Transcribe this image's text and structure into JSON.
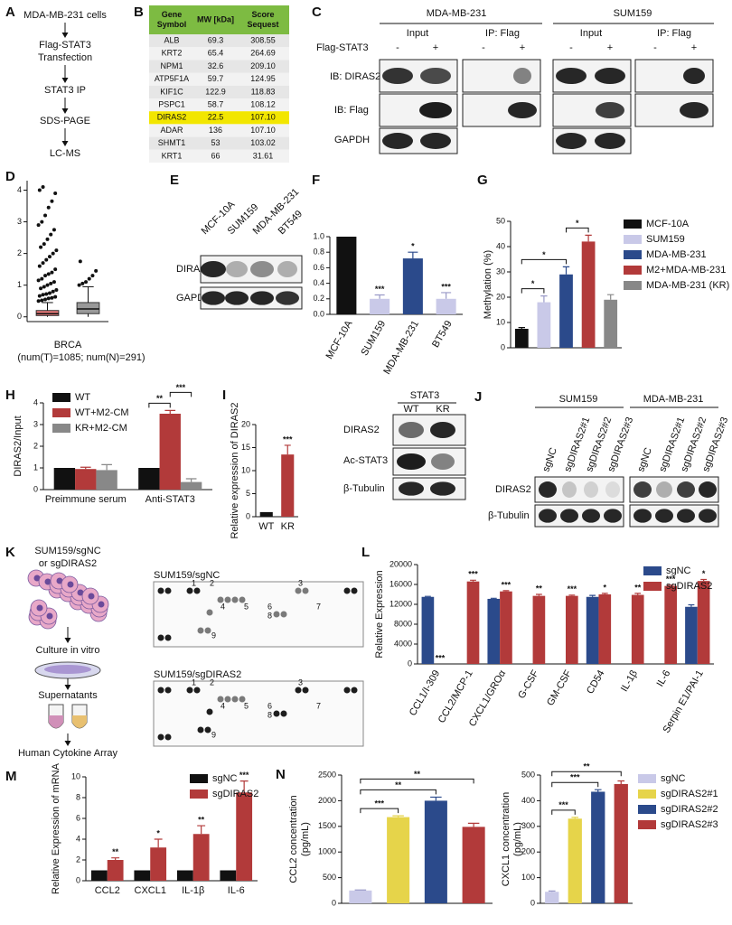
{
  "panel_a": {
    "letter": "A",
    "steps": [
      [
        "MDA-MB-231 cells"
      ],
      [
        "Flag-STAT3",
        "Transfection"
      ],
      [
        "STAT3 IP"
      ],
      [
        "SDS-PAGE"
      ],
      [
        "LC-MS"
      ]
    ]
  },
  "panel_b": {
    "letter": "B",
    "headers": [
      [
        "Gene",
        "Symbol"
      ],
      [
        "MW [kDa]"
      ],
      [
        "Score",
        "Sequest"
      ]
    ],
    "rows": [
      [
        "ALB",
        "69.3",
        "308.55"
      ],
      [
        "KRT2",
        "65.4",
        "264.69"
      ],
      [
        "NPM1",
        "32.6",
        "209.10"
      ],
      [
        "ATP5F1A",
        "59.7",
        "124.95"
      ],
      [
        "KIF1C",
        "122.9",
        "118.83"
      ],
      [
        "PSPC1",
        "58.7",
        "108.12"
      ],
      [
        "DIRAS2",
        "22.5",
        "107.10"
      ],
      [
        "ADAR",
        "136",
        "107.10"
      ],
      [
        "SHMT1",
        "53",
        "103.02"
      ],
      [
        "KRT1",
        "66",
        "31.61"
      ]
    ],
    "highlight_row": "DIRAS2",
    "header_color": "#7dbb42",
    "highlight_color": "#f2e600"
  },
  "panel_c": {
    "letter": "C",
    "cell_lines": [
      "MDA-MB-231",
      "SUM159"
    ],
    "groups": [
      "Input",
      "IP: Flag"
    ],
    "treatment": "Flag-STAT3",
    "signs": [
      "-",
      "+"
    ],
    "rows": [
      "IB: DIRAS2",
      "IB: Flag",
      "GAPDH"
    ]
  },
  "panel_e": {
    "letter": "E",
    "lanes": [
      "MCF-10A",
      "SUM159",
      "MDA-MB-231",
      "BT549"
    ],
    "rows": [
      "DIRAS2",
      "GAPDH"
    ]
  },
  "panel_i_blot": {
    "group": "STAT3",
    "lanes": [
      "WT",
      "KR"
    ],
    "rows": [
      "DIRAS2",
      "Ac-STAT3",
      "β-Tubulin"
    ]
  },
  "panel_j": {
    "letter": "J",
    "cell_lines": [
      "SUM159",
      "MDA-MB-231"
    ],
    "lanes": [
      "sgNC",
      "sgDIRAS2#1",
      "sgDIRAS2#2",
      "sgDIRAS2#3"
    ],
    "rows": [
      "DIRAS2",
      "β-Tubulin"
    ]
  },
  "panel_k": {
    "letter": "K",
    "steps": [
      [
        "SUM159/sgNC",
        "or sgDIRAS2"
      ],
      [
        "Culture in vitro"
      ],
      [
        "Supernatants"
      ],
      [
        "Human Cytokine Array"
      ]
    ]
  },
  "panel_l_arrays": {
    "titles": [
      "SUM159/sgNC",
      "SUM159/sgDIRAS2"
    ],
    "labels": [
      "1",
      "2",
      "3",
      "4",
      "5",
      "6",
      "7",
      "8",
      "9"
    ]
  },
  "chart_data": [
    {
      "type": "box",
      "panel": "D",
      "xlabel": "BRCA",
      "note": "(num(T)=1085; num(N)=291)",
      "ylim": [
        -0.15,
        4.3
      ],
      "yticks": [
        0,
        1,
        2,
        3,
        4
      ],
      "boxes": [
        {
          "color": "#e06060",
          "q1": 0.04,
          "median": 0.1,
          "q3": 0.2,
          "whisker_low": 0,
          "whisker_high": 0.45,
          "outliers": [
            0.5,
            0.52,
            0.55,
            0.58,
            0.6,
            0.63,
            0.66,
            0.7,
            0.72,
            0.75,
            0.8,
            0.85,
            0.9,
            0.95,
            1.0,
            1.05,
            1.1,
            1.15,
            1.2,
            1.3,
            1.35,
            1.4,
            1.5,
            1.6,
            1.7,
            1.8,
            1.9,
            2.0,
            2.1,
            2.2,
            2.3,
            2.45,
            2.6,
            2.75,
            2.9,
            3.0,
            3.2,
            3.45,
            3.65,
            3.9,
            4.0,
            4.1
          ]
        },
        {
          "color": "#888888",
          "q1": 0.1,
          "median": 0.25,
          "q3": 0.45,
          "whisker_low": 0,
          "whisker_high": 0.95,
          "outliers": [
            1.0,
            1.05,
            1.1,
            1.2,
            1.3,
            1.45,
            1.75
          ]
        }
      ]
    },
    {
      "type": "bar",
      "panel": "F",
      "categories": [
        "MCF-10A",
        "SUM159",
        "MDA-MB-231",
        "BT549"
      ],
      "values": [
        1.0,
        0.2,
        0.72,
        0.2
      ],
      "errors": [
        0,
        0.05,
        0.08,
        0.08
      ],
      "colors": [
        "#111111",
        "#c9c9e8",
        "#2b4a8b",
        "#c9c9e8"
      ],
      "stars": [
        null,
        "***",
        "*",
        "***"
      ],
      "ylim": [
        0,
        1.0
      ],
      "yticks": [
        {
          "value": 0,
          "label": "0.0"
        },
        0.2,
        0.4,
        0.6,
        0.8,
        {
          "value": 1.0,
          "label": "1.0"
        }
      ]
    },
    {
      "type": "bar",
      "panel": "G",
      "ylabel": "Methylation (%)",
      "categories": [
        "MCF-10A",
        "SUM159",
        "MDA-MB-231",
        "M2+MDA-MB-231",
        "MDA-MB-231 (KR)"
      ],
      "values": [
        7.5,
        18,
        29,
        42,
        19
      ],
      "errors": [
        0.5,
        2.5,
        3,
        2.5,
        2
      ],
      "colors": [
        "#111111",
        "#c9c9e8",
        "#2b4a8b",
        "#b23a3a",
        "#888888"
      ],
      "ylim": [
        0,
        50
      ],
      "yticks": [
        0,
        10,
        20,
        30,
        40,
        50
      ],
      "x_labels": false,
      "legend": "right",
      "brackets": [
        {
          "from": "MCF-10A",
          "to": "SUM159",
          "text": "*"
        },
        {
          "from": "MCF-10A",
          "to": "MDA-MB-231",
          "text": "*"
        },
        {
          "from": "MDA-MB-231",
          "to": "M2+MDA-MB-231",
          "text": "*"
        }
      ]
    },
    {
      "type": "grouped_bar",
      "panel": "H",
      "ylabel": "DIRAS2/Input",
      "categories": [
        "Preimmune serum",
        "Anti-STAT3"
      ],
      "series": [
        {
          "name": "WT",
          "color": "#111111",
          "values": [
            1,
            1
          ],
          "errors": [
            0,
            0
          ]
        },
        {
          "name": "WT+M2-CM",
          "color": "#b23a3a",
          "values": [
            0.95,
            3.5
          ],
          "errors": [
            0.08,
            0.15
          ]
        },
        {
          "name": "KR+M2-CM",
          "color": "#888888",
          "values": [
            0.9,
            0.35
          ],
          "errors": [
            0.25,
            0.15
          ]
        }
      ],
      "ylim": [
        0,
        4
      ],
      "yticks": [
        0,
        1,
        2,
        3,
        4
      ],
      "legend": "upper left",
      "brackets": [
        {
          "group": "Anti-STAT3",
          "from": "WT",
          "to": "WT+M2-CM",
          "text": "**"
        },
        {
          "group": "Anti-STAT3",
          "from": "WT+M2-CM",
          "to": "KR+M2-CM",
          "text": "***"
        }
      ]
    },
    {
      "type": "bar",
      "panel": "I",
      "ylabel": "Relative expression of DIRAS2",
      "categories": [
        "WT",
        "KR"
      ],
      "values": [
        1,
        13.5
      ],
      "errors": [
        0,
        2
      ],
      "colors": [
        "#111111",
        "#b23a3a"
      ],
      "stars": [
        null,
        "***"
      ],
      "ylim": [
        0,
        20
      ],
      "yticks": [
        0,
        5,
        10,
        15,
        20
      ]
    },
    {
      "type": "grouped_bar",
      "panel": "L",
      "ylabel": "Relative Expression",
      "categories": [
        "CCL1/I-309",
        "CCL2/MCP-1",
        "CXCL1/GROα",
        "G-CSF",
        "GM-CSF",
        "CD54",
        "IL-1β",
        "IL-6",
        "Serpin E1/PAI-1"
      ],
      "series": [
        {
          "name": "sgNC",
          "color": "#2b4a8b",
          "values": [
            13500,
            0,
            13100,
            0,
            0,
            13500,
            0,
            0,
            11500
          ],
          "errors": [
            100,
            0,
            120,
            0,
            0,
            300,
            0,
            0,
            400
          ]
        },
        {
          "name": "sgDIRAS2",
          "color": "#b23a3a",
          "values": [
            0,
            16600,
            14600,
            13700,
            13700,
            14000,
            13900,
            15700,
            16700
          ],
          "errors": [
            0,
            250,
            150,
            300,
            150,
            200,
            300,
            150,
            300
          ],
          "stars": [
            "***",
            "***",
            "***",
            "**",
            "***",
            "*",
            "**",
            "***",
            "*"
          ]
        }
      ],
      "ylim": [
        0,
        20000
      ],
      "yticks": [
        0,
        4000,
        8000,
        12000,
        16000,
        20000
      ],
      "legend": "upper right"
    },
    {
      "type": "grouped_bar",
      "panel": "M",
      "ylabel": "Relative Expression of  mRNA",
      "categories": [
        "CCL2",
        "CXCL1",
        "IL-1β",
        "IL-6"
      ],
      "series": [
        {
          "name": "sgNC",
          "color": "#111111",
          "values": [
            1,
            1,
            1,
            1
          ],
          "errors": [
            0,
            0,
            0,
            0
          ]
        },
        {
          "name": "sgDIRAS2",
          "color": "#b23a3a",
          "values": [
            2,
            3.2,
            4.5,
            8.5
          ],
          "errors": [
            0.2,
            0.8,
            0.8,
            1.1
          ],
          "stars": [
            "**",
            "*",
            "**",
            "***"
          ]
        }
      ],
      "ylim": [
        0,
        10
      ],
      "yticks": [
        0,
        2,
        4,
        6,
        8,
        10
      ],
      "legend": "upper right"
    },
    {
      "type": "bar",
      "panel": "N",
      "ylabel": [
        "CCL2 concentration",
        "(pg/mL)"
      ],
      "categories": [
        "sgNC",
        "sgDIRAS2#1",
        "sgDIRAS2#2",
        "sgDIRAS2#3"
      ],
      "values": [
        250,
        1680,
        2000,
        1490
      ],
      "errors": [
        10,
        25,
        70,
        70
      ],
      "colors": [
        "#c9c9e8",
        "#e6d44a",
        "#2b4a8b",
        "#b23a3a"
      ],
      "ylim": [
        0,
        2500
      ],
      "yticks": [
        0,
        500,
        1000,
        1500,
        2000,
        2500
      ],
      "x_labels": false,
      "brackets": [
        {
          "from": "sgNC",
          "to": "sgDIRAS2#1",
          "text": "***"
        },
        {
          "from": "sgNC",
          "to": "sgDIRAS2#2",
          "text": "**"
        },
        {
          "from": "sgNC",
          "to": "sgDIRAS2#3",
          "text": "**"
        }
      ]
    },
    {
      "type": "bar",
      "ylabel": [
        "CXCL1 concentration",
        "(pg/mL)"
      ],
      "categories": [
        "sgNC",
        "sgDIRAS2#1",
        "sgDIRAS2#2",
        "sgDIRAS2#3"
      ],
      "values": [
        45,
        330,
        435,
        465
      ],
      "errors": [
        3,
        5,
        8,
        12
      ],
      "colors": [
        "#c9c9e8",
        "#e6d44a",
        "#2b4a8b",
        "#b23a3a"
      ],
      "ylim": [
        0,
        500
      ],
      "yticks": [
        0,
        100,
        200,
        300,
        400,
        500
      ],
      "x_labels": false,
      "legend": "right",
      "brackets": [
        {
          "from": "sgNC",
          "to": "sgDIRAS2#1",
          "text": "***"
        },
        {
          "from": "sgNC",
          "to": "sgDIRAS2#2",
          "text": "***"
        },
        {
          "from": "sgNC",
          "to": "sgDIRAS2#3",
          "text": "**"
        }
      ]
    }
  ]
}
